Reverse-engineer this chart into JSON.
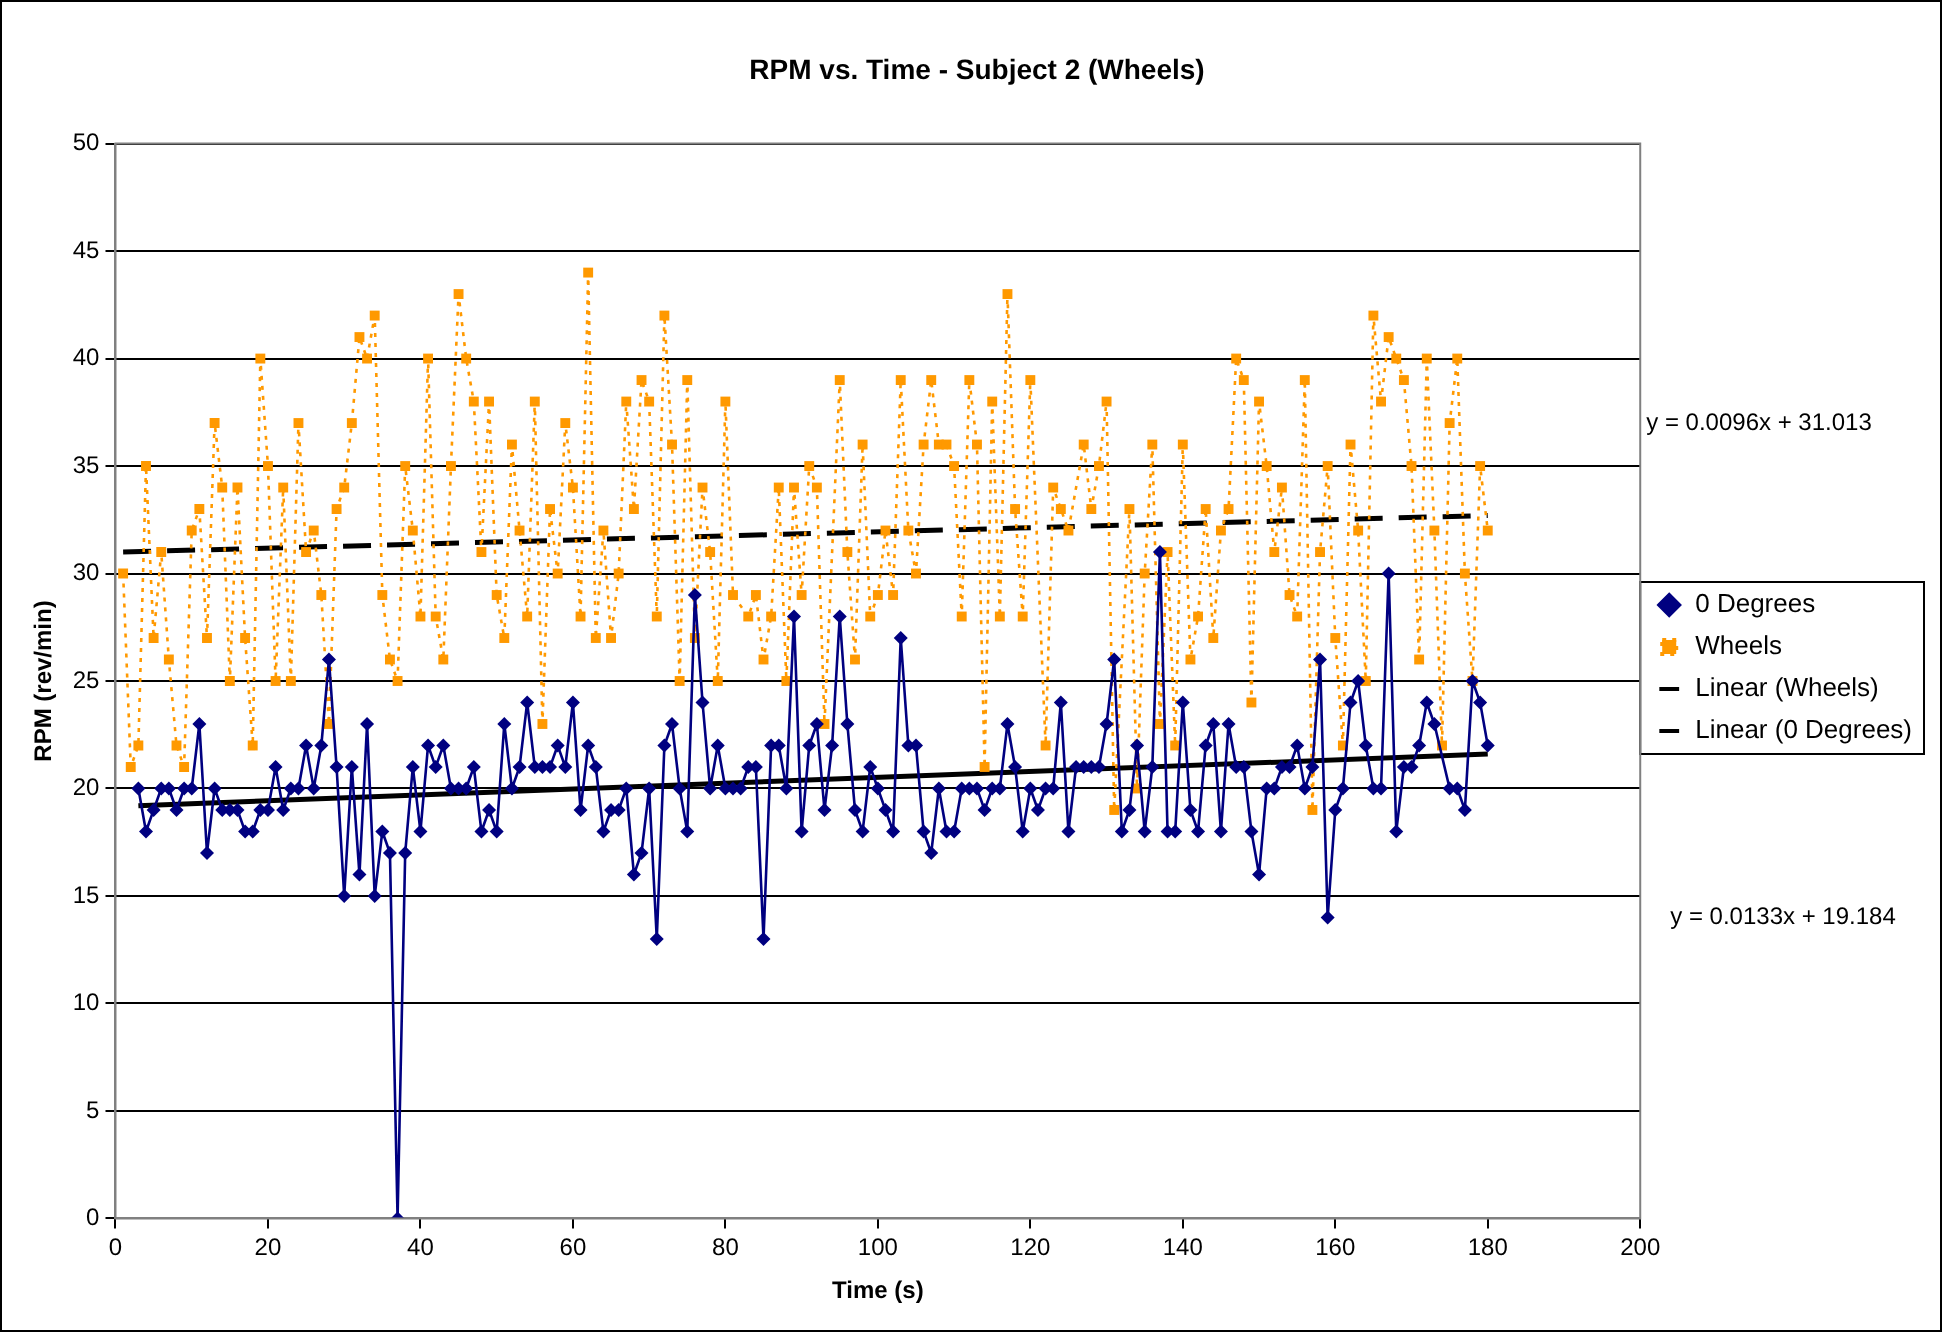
{
  "chart_data": {
    "type": "line",
    "title": "RPM vs. Time - Subject 2 (Wheels)",
    "xlabel": "Time (s)",
    "ylabel": "RPM (rev/min)",
    "xlim": [
      0,
      200
    ],
    "xticks": [
      0,
      20,
      40,
      60,
      80,
      100,
      120,
      140,
      160,
      180,
      200
    ],
    "ylim": [
      0,
      50
    ],
    "yticks": [
      0,
      5,
      10,
      15,
      20,
      25,
      30,
      35,
      40,
      45,
      50
    ],
    "grid": "y",
    "legend": "right",
    "annotations": [
      "y = 0.0096x + 31.013",
      "y = 0.0133x + 19.184"
    ],
    "series": [
      {
        "name": "0 Degrees",
        "type": "line",
        "color": "#000080",
        "marker": "diamond",
        "line_style": "solid",
        "x": [
          3,
          4,
          5,
          6,
          7,
          8,
          9,
          10,
          11,
          12,
          13,
          14,
          15,
          16,
          17,
          18,
          19,
          20,
          21,
          22,
          23,
          24,
          25,
          26,
          27,
          28,
          29,
          30,
          31,
          32,
          33,
          34,
          35,
          36,
          37,
          38,
          39,
          40,
          41,
          42,
          43,
          44,
          45,
          46,
          47,
          48,
          49,
          50,
          51,
          52,
          53,
          54,
          55,
          56,
          57,
          58,
          59,
          60,
          61,
          62,
          63,
          64,
          65,
          66,
          67,
          68,
          69,
          70,
          71,
          72,
          73,
          74,
          75,
          76,
          77,
          78,
          79,
          80,
          81,
          82,
          83,
          84,
          85,
          86,
          87,
          88,
          89,
          90,
          91,
          92,
          93,
          94,
          95,
          96,
          97,
          98,
          99,
          100,
          101,
          102,
          103,
          104,
          105,
          106,
          107,
          108,
          109,
          110,
          111,
          112,
          113,
          114,
          115,
          116,
          117,
          118,
          119,
          120,
          121,
          122,
          123,
          124,
          125,
          126,
          127,
          128,
          129,
          130,
          131,
          132,
          133,
          134,
          135,
          136,
          137,
          138,
          139,
          140,
          141,
          142,
          143,
          144,
          145,
          146,
          147,
          148,
          149,
          150,
          151,
          152,
          153,
          154,
          155,
          156,
          157,
          158,
          159,
          160,
          161,
          162,
          163,
          164,
          165,
          166,
          167,
          168,
          169,
          170,
          171,
          172,
          173,
          175,
          176,
          177,
          178,
          179,
          180
        ],
        "values": [
          20,
          18,
          19,
          20,
          20,
          19,
          20,
          20,
          23,
          17,
          20,
          19,
          19,
          19,
          18,
          18,
          19,
          19,
          21,
          19,
          20,
          20,
          22,
          20,
          22,
          26,
          21,
          15,
          21,
          16,
          23,
          15,
          18,
          17,
          0,
          17,
          21,
          18,
          22,
          21,
          22,
          20,
          20,
          20,
          21,
          18,
          19,
          18,
          23,
          20,
          21,
          24,
          21,
          21,
          21,
          22,
          21,
          24,
          19,
          22,
          21,
          18,
          19,
          19,
          20,
          16,
          17,
          20,
          13,
          22,
          23,
          20,
          18,
          29,
          24,
          20,
          22,
          20,
          20,
          20,
          21,
          21,
          13,
          22,
          22,
          20,
          28,
          18,
          22,
          23,
          19,
          22,
          28,
          23,
          19,
          18,
          21,
          20,
          19,
          18,
          27,
          22,
          22,
          18,
          17,
          20,
          18,
          18,
          20,
          20,
          20,
          19,
          20,
          20,
          23,
          21,
          18,
          20,
          19,
          20,
          20,
          24,
          18,
          21,
          21,
          21,
          21,
          23,
          26,
          18,
          19,
          22,
          18,
          21,
          31,
          18,
          18,
          24,
          19,
          18,
          22,
          23,
          18,
          23,
          21,
          21,
          18,
          16,
          20,
          20,
          21,
          21,
          22,
          20,
          21,
          26,
          14,
          19,
          20,
          24,
          25,
          22,
          20,
          20,
          30,
          18,
          21,
          21,
          22,
          24,
          23,
          20,
          20,
          19,
          25,
          24,
          22
        ]
      },
      {
        "name": "Wheels",
        "type": "line",
        "color": "#ff9900",
        "marker": "square",
        "line_style": "dotted",
        "x": [
          1,
          2,
          3,
          4,
          5,
          6,
          7,
          8,
          9,
          10,
          11,
          12,
          13,
          14,
          15,
          16,
          17,
          18,
          19,
          20,
          21,
          22,
          23,
          24,
          25,
          26,
          27,
          28,
          29,
          30,
          31,
          32,
          33,
          34,
          35,
          36,
          37,
          38,
          39,
          40,
          41,
          42,
          43,
          44,
          45,
          46,
          47,
          48,
          49,
          50,
          51,
          52,
          53,
          54,
          55,
          56,
          57,
          58,
          59,
          60,
          61,
          62,
          63,
          64,
          65,
          66,
          67,
          68,
          69,
          70,
          71,
          72,
          73,
          74,
          75,
          76,
          77,
          78,
          79,
          80,
          81,
          83,
          84,
          85,
          86,
          87,
          88,
          89,
          90,
          91,
          92,
          93,
          95,
          96,
          97,
          98,
          99,
          100,
          101,
          102,
          103,
          104,
          105,
          106,
          107,
          108,
          109,
          110,
          111,
          112,
          113,
          114,
          115,
          116,
          117,
          118,
          119,
          120,
          122,
          123,
          124,
          125,
          127,
          128,
          129,
          130,
          131,
          133,
          134,
          135,
          136,
          137,
          138,
          139,
          140,
          141,
          142,
          143,
          144,
          145,
          146,
          147,
          148,
          149,
          150,
          151,
          152,
          153,
          154,
          155,
          156,
          157,
          158,
          159,
          160,
          161,
          162,
          163,
          164,
          165,
          166,
          167,
          168,
          169,
          170,
          171,
          172,
          173,
          174,
          175,
          176,
          177,
          178,
          179,
          180
        ],
        "values": [
          30,
          21,
          22,
          35,
          27,
          31,
          26,
          22,
          21,
          32,
          33,
          27,
          37,
          34,
          25,
          34,
          27,
          22,
          40,
          35,
          25,
          34,
          25,
          37,
          31,
          32,
          29,
          23,
          33,
          34,
          37,
          41,
          40,
          42,
          29,
          26,
          25,
          35,
          32,
          28,
          40,
          28,
          26,
          35,
          43,
          40,
          38,
          31,
          38,
          29,
          27,
          36,
          32,
          28,
          38,
          23,
          33,
          30,
          37,
          34,
          28,
          44,
          27,
          32,
          27,
          30,
          38,
          33,
          39,
          38,
          28,
          42,
          36,
          25,
          39,
          27,
          34,
          31,
          25,
          38,
          29,
          28,
          29,
          26,
          28,
          34,
          25,
          34,
          29,
          35,
          34,
          23,
          39,
          31,
          26,
          36,
          28,
          29,
          32,
          29,
          39,
          32,
          30,
          36,
          39,
          36,
          36,
          35,
          28,
          39,
          36,
          21,
          38,
          28,
          43,
          33,
          28,
          39,
          22,
          34,
          33,
          32,
          36,
          33,
          35,
          38,
          19,
          33,
          20,
          30,
          36,
          23,
          31,
          22,
          36,
          26,
          28,
          33,
          27,
          32,
          33,
          40,
          39,
          24,
          38,
          35,
          31,
          34,
          29,
          28,
          39,
          19,
          31,
          35,
          27,
          22,
          36,
          32,
          25,
          42,
          38,
          41,
          40,
          39,
          35,
          26,
          40,
          32,
          22,
          37,
          40,
          30,
          25,
          35,
          32
        ]
      },
      {
        "name": "Linear (Wheels)",
        "type": "line",
        "color": "#000000",
        "marker": "none",
        "line_style": "dashed",
        "x": [
          1,
          180
        ],
        "values": [
          31.0,
          32.7
        ]
      },
      {
        "name": "Linear (0 Degrees)",
        "type": "line",
        "color": "#000000",
        "marker": "none",
        "line_style": "solid",
        "x": [
          3,
          180
        ],
        "values": [
          19.2,
          21.6
        ]
      }
    ]
  }
}
